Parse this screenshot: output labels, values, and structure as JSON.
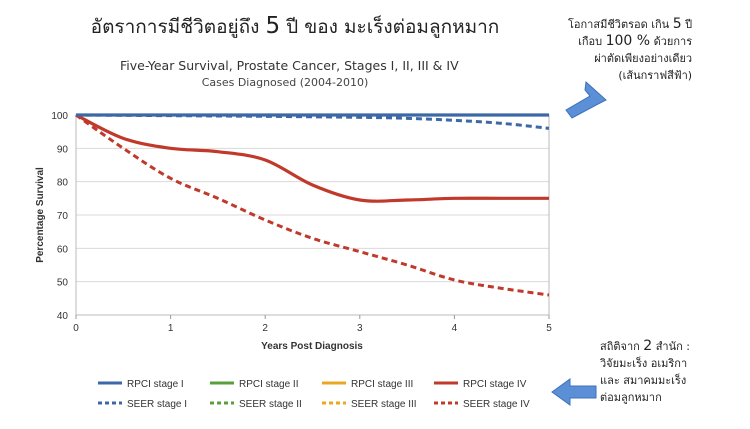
{
  "main_title": {
    "before": "อัตราการมีชีวิตอยู่ถึง ",
    "number": "5",
    "after": " ปี ของ มะเร็งต่อมลูกหมาก"
  },
  "annotation_top": {
    "line1_before": "โอกาสมีชีวิตรอด เกิน ",
    "line1_number": "5",
    "line1_after": " ปี",
    "line2_before": "เกือบ ",
    "line2_number": "100 %",
    "line2_after": " ด้วยการ",
    "line3": "ผ่าตัดเพียงอย่างเดียว",
    "line4": "(เส้นกราฟสีฟ้า)"
  },
  "annotation_bottom": {
    "line1_before": "สถิติจาก ",
    "line1_number": "2",
    "line1_after": " สำนัก :",
    "line2": "วิจัยมะเร็ง อเมริกา",
    "line3": "และ สมาคมมะเร็ง",
    "line4": "ต่อมลูกหมาก"
  },
  "colors": {
    "blue": "#3d68a8",
    "green": "#5a9f3e",
    "orange": "#eba720",
    "red": "#c0392b",
    "arrow": "#5b8fd6",
    "grid": "#d9d9d9"
  },
  "chart_data": {
    "type": "line",
    "title": "Five-Year Survival, Prostate Cancer, Stages I, II, III & IV",
    "subtitle": "Cases Diagnosed (2004-2010)",
    "xlabel": "Years Post Diagnosis",
    "ylabel": "Percentage Survival",
    "xlim": [
      0,
      5
    ],
    "ylim": [
      40,
      100
    ],
    "xticks": [
      0,
      1,
      2,
      3,
      4,
      5
    ],
    "yticks": [
      40,
      50,
      60,
      70,
      80,
      90,
      100
    ],
    "grid": "horizontal",
    "legend_position": "bottom",
    "series": [
      {
        "name": "RPCI stage I",
        "color": "#3d68a8",
        "dash": false,
        "x": [
          0,
          1,
          2,
          3,
          4,
          5
        ],
        "y": [
          100,
          100,
          100,
          100,
          100,
          100
        ]
      },
      {
        "name": "RPCI stage II",
        "color": "#5a9f3e",
        "dash": false,
        "x": [],
        "y": []
      },
      {
        "name": "RPCI stage III",
        "color": "#eba720",
        "dash": false,
        "x": [],
        "y": []
      },
      {
        "name": "RPCI stage IV",
        "color": "#c0392b",
        "dash": false,
        "x": [
          0,
          0.5,
          1,
          1.5,
          2,
          2.5,
          3,
          3.5,
          4,
          4.5,
          5
        ],
        "y": [
          100,
          93,
          90,
          89,
          86.5,
          79,
          74.5,
          74.5,
          75,
          75,
          75
        ]
      },
      {
        "name": "SEER stage I",
        "color": "#3d68a8",
        "dash": true,
        "x": [
          0,
          1,
          2,
          3,
          3.5,
          4,
          4.5,
          5
        ],
        "y": [
          100,
          99.8,
          99.6,
          99.3,
          99,
          98.4,
          97.5,
          96
        ]
      },
      {
        "name": "SEER stage II",
        "color": "#5a9f3e",
        "dash": true,
        "x": [],
        "y": []
      },
      {
        "name": "SEER stage III",
        "color": "#eba720",
        "dash": true,
        "x": [],
        "y": []
      },
      {
        "name": "SEER stage IV",
        "color": "#c0392b",
        "dash": true,
        "x": [
          0,
          0.5,
          1,
          1.5,
          2,
          2.5,
          3,
          3.5,
          4,
          4.5,
          5
        ],
        "y": [
          100,
          90,
          81,
          75,
          68.5,
          63,
          59,
          55,
          50.5,
          48,
          46
        ]
      }
    ]
  }
}
